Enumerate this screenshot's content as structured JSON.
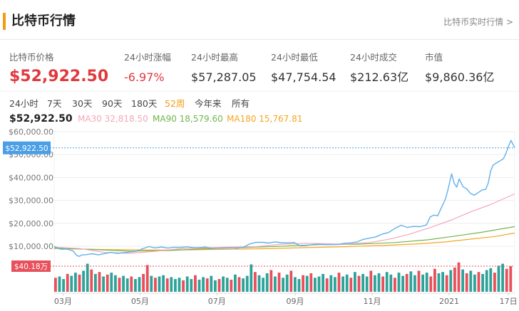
{
  "header": {
    "title": "比特币行情",
    "more_link": "比特币实时行情 >"
  },
  "stats": [
    {
      "label": "比特币价格",
      "value": "$52,922.50"
    },
    {
      "label": "24小时涨幅",
      "value": "-6.97%"
    },
    {
      "label": "24小时最高",
      "value": "$57,287.05"
    },
    {
      "label": "24小时最低",
      "value": "$47,754.54"
    },
    {
      "label": "24小时成交",
      "value": "$212.63亿"
    },
    {
      "label": "市值",
      "value": "$9,860.36亿"
    }
  ],
  "tabs": [
    {
      "label": "24小时",
      "active": false
    },
    {
      "label": "7天",
      "active": false
    },
    {
      "label": "30天",
      "active": false
    },
    {
      "label": "90天",
      "active": false
    },
    {
      "label": "180天",
      "active": false
    },
    {
      "label": "52周",
      "active": true
    },
    {
      "label": "今年来",
      "active": false
    },
    {
      "label": "所有",
      "active": false
    }
  ],
  "colors": {
    "accent": "#f39c12",
    "down_red": "#e0393e",
    "price_line": "#62b0ea",
    "ma30": "#f4a7b9",
    "ma90": "#72b64a",
    "ma180": "#f5a623",
    "volume_up": "#2ea39a",
    "volume_down": "#e8505b",
    "price_marker": "#4b9fe6",
    "grid": "#eeeeee"
  },
  "chart_data": {
    "type": "line",
    "x_range": [
      0,
      365
    ],
    "y_range": [
      0,
      60000
    ],
    "y_ticks": [
      {
        "value": 60000,
        "label": "$60,000.00"
      },
      {
        "value": 50000,
        "label": "$50,000.00"
      },
      {
        "value": 40000,
        "label": "$40,000.00"
      },
      {
        "value": 30000,
        "label": "$30,000.00"
      },
      {
        "value": 20000,
        "label": "$20,000.00"
      },
      {
        "value": 10000,
        "label": "$10,000.00"
      }
    ],
    "x_ticks": [
      {
        "day": 7,
        "label": "03月"
      },
      {
        "day": 68,
        "label": "05月"
      },
      {
        "day": 129,
        "label": "07月"
      },
      {
        "day": 191,
        "label": "09月"
      },
      {
        "day": 252,
        "label": "11月"
      },
      {
        "day": 313,
        "label": "2021"
      },
      {
        "day": 360,
        "label": "17日"
      }
    ],
    "series": [
      {
        "name": "MA180",
        "legend": "MA180 15,767.81",
        "color_key": "ma180",
        "points": [
          [
            0,
            9000
          ],
          [
            40,
            8550
          ],
          [
            80,
            8350
          ],
          [
            110,
            8450
          ],
          [
            140,
            8700
          ],
          [
            170,
            8950
          ],
          [
            200,
            9400
          ],
          [
            230,
            9800
          ],
          [
            260,
            10300
          ],
          [
            290,
            11100
          ],
          [
            310,
            11900
          ],
          [
            330,
            13100
          ],
          [
            350,
            14300
          ],
          [
            365,
            15767.81
          ]
        ]
      },
      {
        "name": "MA90",
        "legend": "MA90 18,579.60",
        "color_key": "ma90",
        "points": [
          [
            0,
            9200
          ],
          [
            30,
            8600
          ],
          [
            60,
            7900
          ],
          [
            90,
            8100
          ],
          [
            120,
            8900
          ],
          [
            150,
            9400
          ],
          [
            180,
            10000
          ],
          [
            210,
            10700
          ],
          [
            240,
            10900
          ],
          [
            270,
            11600
          ],
          [
            296,
            12800
          ],
          [
            320,
            14600
          ],
          [
            340,
            16200
          ],
          [
            365,
            18579.6
          ]
        ]
      },
      {
        "name": "MA30",
        "legend": "MA30 32,818.50",
        "color_key": "ma30",
        "points": [
          [
            0,
            9600
          ],
          [
            20,
            9000
          ],
          [
            40,
            7300
          ],
          [
            60,
            6900
          ],
          [
            80,
            7800
          ],
          [
            100,
            8900
          ],
          [
            130,
            9500
          ],
          [
            160,
            9800
          ],
          [
            180,
            10900
          ],
          [
            200,
            11300
          ],
          [
            230,
            10900
          ],
          [
            250,
            11600
          ],
          [
            265,
            13000
          ],
          [
            280,
            15000
          ],
          [
            300,
            18500
          ],
          [
            315,
            21500
          ],
          [
            330,
            25000
          ],
          [
            345,
            28000
          ],
          [
            365,
            32818.5
          ]
        ]
      },
      {
        "name": "",
        "legend": "$52,922.50",
        "color_key": "price_line",
        "points": [
          [
            0,
            9950
          ],
          [
            5,
            8700
          ],
          [
            10,
            8750
          ],
          [
            15,
            7950
          ],
          [
            18,
            5900
          ],
          [
            20,
            5600
          ],
          [
            22,
            6200
          ],
          [
            25,
            6300
          ],
          [
            30,
            6750
          ],
          [
            35,
            6250
          ],
          [
            40,
            6800
          ],
          [
            45,
            7300
          ],
          [
            50,
            6900
          ],
          [
            55,
            7200
          ],
          [
            60,
            7500
          ],
          [
            65,
            7750
          ],
          [
            70,
            8900
          ],
          [
            75,
            9850
          ],
          [
            80,
            9300
          ],
          [
            85,
            9700
          ],
          [
            90,
            9200
          ],
          [
            95,
            9550
          ],
          [
            100,
            9500
          ],
          [
            105,
            9750
          ],
          [
            110,
            9450
          ],
          [
            115,
            9400
          ],
          [
            120,
            9650
          ],
          [
            125,
            9050
          ],
          [
            130,
            9100
          ],
          [
            135,
            9250
          ],
          [
            140,
            9300
          ],
          [
            145,
            9150
          ],
          [
            150,
            9550
          ],
          [
            155,
            11000
          ],
          [
            160,
            11750
          ],
          [
            165,
            11700
          ],
          [
            170,
            11400
          ],
          [
            175,
            11900
          ],
          [
            180,
            11550
          ],
          [
            185,
            11450
          ],
          [
            190,
            11650
          ],
          [
            195,
            10150
          ],
          [
            200,
            10350
          ],
          [
            205,
            10750
          ],
          [
            210,
            10900
          ],
          [
            215,
            10700
          ],
          [
            220,
            10750
          ],
          [
            225,
            10750
          ],
          [
            230,
            11300
          ],
          [
            235,
            11450
          ],
          [
            240,
            11900
          ],
          [
            245,
            13000
          ],
          [
            250,
            13550
          ],
          [
            255,
            14100
          ],
          [
            260,
            15300
          ],
          [
            265,
            16000
          ],
          [
            270,
            17800
          ],
          [
            275,
            19150
          ],
          [
            280,
            18200
          ],
          [
            285,
            18650
          ],
          [
            290,
            18550
          ],
          [
            295,
            19250
          ],
          [
            298,
            22800
          ],
          [
            301,
            23600
          ],
          [
            304,
            23300
          ],
          [
            307,
            27000
          ],
          [
            310,
            30500
          ],
          [
            312,
            34500
          ],
          [
            315,
            41600
          ],
          [
            317,
            37500
          ],
          [
            319,
            35800
          ],
          [
            321,
            39400
          ],
          [
            324,
            36000
          ],
          [
            327,
            35000
          ],
          [
            330,
            33000
          ],
          [
            333,
            32300
          ],
          [
            336,
            33400
          ],
          [
            339,
            34500
          ],
          [
            342,
            34800
          ],
          [
            344,
            37500
          ],
          [
            346,
            43000
          ],
          [
            348,
            45500
          ],
          [
            351,
            46500
          ],
          [
            354,
            47500
          ],
          [
            356,
            48200
          ],
          [
            358,
            50500
          ],
          [
            360,
            53500
          ],
          [
            362,
            56200
          ],
          [
            365,
            52922.5
          ]
        ]
      }
    ],
    "current_price": {
      "marker_label": "$52,922.50",
      "marker_value": 52922.5
    },
    "volume": {
      "marker_label": "$40.18万",
      "marker_value": 40.18,
      "values": [
        22,
        24,
        20,
        28,
        25,
        30,
        27,
        33,
        44,
        35,
        28,
        31,
        24,
        27,
        30,
        26,
        22,
        25,
        21,
        24,
        20,
        23,
        28,
        42,
        25,
        22,
        24,
        26,
        21,
        23,
        20,
        22,
        18,
        24,
        20,
        26,
        19,
        23,
        21,
        25,
        18,
        20,
        24,
        22,
        19,
        27,
        23,
        21,
        25,
        43,
        31,
        26,
        22,
        29,
        34,
        24,
        30,
        22,
        27,
        33,
        23,
        20,
        26,
        25,
        29,
        22,
        24,
        28,
        21,
        26,
        23,
        30,
        24,
        27,
        22,
        31,
        25,
        28,
        24,
        33,
        26,
        29,
        24,
        31,
        27,
        22,
        30,
        25,
        28,
        32,
        26,
        33,
        27,
        30,
        24,
        36,
        29,
        31,
        26,
        34,
        38,
        46,
        35,
        29,
        33,
        27,
        31,
        28,
        34,
        37,
        30,
        41,
        44,
        36,
        40.18
      ],
      "direction": [
        "d",
        "u",
        "u",
        "d",
        "u",
        "u",
        "d",
        "u",
        "u",
        "d",
        "u",
        "d",
        "u",
        "d",
        "u",
        "u",
        "d",
        "u",
        "u",
        "d",
        "u",
        "u",
        "d",
        "d",
        "u",
        "d",
        "u",
        "u",
        "d",
        "u",
        "u",
        "u",
        "d",
        "u",
        "u",
        "d",
        "u",
        "u",
        "d",
        "u",
        "u",
        "d",
        "u",
        "u",
        "d",
        "u",
        "d",
        "u",
        "u",
        "u",
        "d",
        "u",
        "u",
        "u",
        "d",
        "u",
        "d",
        "u",
        "u",
        "d",
        "u",
        "u",
        "d",
        "u",
        "d",
        "u",
        "u",
        "u",
        "d",
        "u",
        "u",
        "d",
        "u",
        "u",
        "d",
        "u",
        "d",
        "u",
        "u",
        "d",
        "u",
        "u",
        "d",
        "u",
        "u",
        "d",
        "u",
        "u",
        "d",
        "u",
        "u",
        "d",
        "u",
        "u",
        "d",
        "d",
        "u",
        "u",
        "d",
        "u",
        "d",
        "d",
        "u",
        "d",
        "u",
        "u",
        "d",
        "u",
        "u",
        "u",
        "d",
        "u",
        "u",
        "d",
        "d"
      ]
    }
  }
}
